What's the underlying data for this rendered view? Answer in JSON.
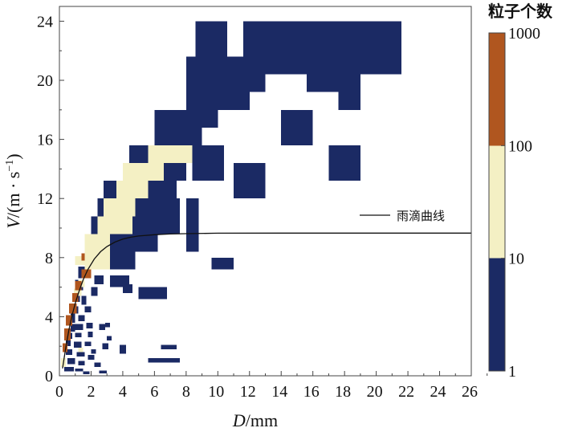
{
  "chart_data": {
    "type": "heatmap",
    "title": "",
    "xlabel": {
      "var": "D",
      "unit": "/mm"
    },
    "ylabel": {
      "var": "V",
      "unit": "/(m · s",
      "sup": "−1",
      "close": ")"
    },
    "xlim": [
      0,
      26
    ],
    "ylim": [
      0,
      25
    ],
    "x_ticks": [
      "0",
      "2",
      "4",
      "6",
      "8",
      "10",
      "12",
      "14",
      "16",
      "18",
      "20",
      "22",
      "24",
      "26"
    ],
    "y_ticks": [
      "0",
      "4",
      "8",
      "12",
      "16",
      "20",
      "24"
    ],
    "colorbar": {
      "title": "粒子个数",
      "scale": "log",
      "ticks": [
        "1",
        "10",
        "100",
        "1000"
      ],
      "bins": [
        {
          "range": [
            1,
            10
          ],
          "color": "#1b2a64"
        },
        {
          "range": [
            10,
            100
          ],
          "color": "#f4f0c4"
        },
        {
          "range": [
            100,
            1000
          ],
          "color": "#b0561f"
        }
      ]
    },
    "legend": {
      "label": "雨滴曲线",
      "position": "right"
    },
    "curve": {
      "name": "雨滴曲线",
      "points": [
        [
          0.2,
          0.5
        ],
        [
          0.4,
          1.9
        ],
        [
          0.6,
          3.1
        ],
        [
          0.8,
          4.1
        ],
        [
          1.0,
          4.9
        ],
        [
          1.2,
          5.6
        ],
        [
          1.5,
          6.5
        ],
        [
          1.8,
          7.2
        ],
        [
          2.2,
          7.9
        ],
        [
          2.6,
          8.4
        ],
        [
          3.0,
          8.75
        ],
        [
          3.5,
          9.05
        ],
        [
          4.0,
          9.25
        ],
        [
          4.5,
          9.38
        ],
        [
          5.0,
          9.46
        ],
        [
          6.0,
          9.55
        ],
        [
          7.0,
          9.6
        ],
        [
          8.0,
          9.62
        ],
        [
          10.0,
          9.65
        ],
        [
          14.0,
          9.66
        ],
        [
          20.0,
          9.66
        ],
        [
          26.0,
          9.66
        ]
      ]
    },
    "cells": [
      [
        8.6,
        22.8,
        2,
        1.2,
        1
      ],
      [
        8.6,
        21.6,
        2,
        1.2,
        1
      ],
      [
        11.6,
        22.8,
        10,
        1.2,
        1
      ],
      [
        11.6,
        21.6,
        10,
        1.2,
        1
      ],
      [
        8.0,
        20.4,
        13.6,
        1.2,
        1
      ],
      [
        8.0,
        19.2,
        5,
        1.2,
        1
      ],
      [
        15.6,
        19.2,
        2,
        1.2,
        1
      ],
      [
        17.6,
        19.2,
        1.4,
        1.2,
        1
      ],
      [
        8.0,
        18.0,
        4,
        1.2,
        1
      ],
      [
        17.6,
        18.0,
        1.4,
        1.2,
        1
      ],
      [
        6.0,
        16.8,
        4,
        1.2,
        1
      ],
      [
        6.0,
        15.6,
        3,
        1.2,
        1
      ],
      [
        14.0,
        16.8,
        2,
        1.2,
        1
      ],
      [
        14.0,
        15.6,
        2,
        1.2,
        1
      ],
      [
        4.4,
        14.4,
        1.6,
        1.2,
        1
      ],
      [
        6.0,
        14.4,
        2.4,
        1.2,
        1
      ],
      [
        8.4,
        14.4,
        2,
        1.2,
        1
      ],
      [
        8.4,
        13.2,
        2,
        1.2,
        1
      ],
      [
        17.0,
        14.4,
        2,
        1.2,
        1
      ],
      [
        17.0,
        13.2,
        2,
        1.2,
        1
      ],
      [
        4.0,
        13.2,
        0.6,
        1.2,
        1
      ],
      [
        6.6,
        13.2,
        1.4,
        1.2,
        1
      ],
      [
        11.0,
        13.2,
        2,
        1.2,
        1
      ],
      [
        11.0,
        12.0,
        2,
        1.2,
        1
      ],
      [
        2.8,
        12.0,
        1.6,
        1.2,
        1
      ],
      [
        5.6,
        12.0,
        1.8,
        1.2,
        1
      ],
      [
        2.4,
        10.8,
        1.2,
        1.2,
        1
      ],
      [
        4.8,
        10.8,
        2.8,
        1.2,
        1
      ],
      [
        8.0,
        10.8,
        0.8,
        1.2,
        1
      ],
      [
        2.0,
        9.6,
        1.4,
        1.2,
        1
      ],
      [
        4.6,
        9.6,
        3.0,
        1.2,
        1
      ],
      [
        8.0,
        9.6,
        0.8,
        1.2,
        1
      ],
      [
        8.0,
        8.4,
        0.8,
        1.2,
        1
      ],
      [
        3.2,
        8.4,
        3.0,
        1.2,
        1
      ],
      [
        3.2,
        7.2,
        1.6,
        1.2,
        1
      ],
      [
        9.6,
        7.2,
        1.4,
        0.8,
        1
      ],
      [
        1.6,
        7.8,
        0.8,
        0.7,
        1
      ],
      [
        1.2,
        6.6,
        0.6,
        0.8,
        1
      ],
      [
        3.2,
        6.0,
        1.2,
        0.8,
        1
      ],
      [
        2.2,
        6.2,
        0.6,
        0.6,
        1
      ],
      [
        1.0,
        5.8,
        0.5,
        0.7,
        1
      ],
      [
        2.0,
        5.4,
        0.4,
        0.6,
        1
      ],
      [
        5.0,
        5.2,
        1.8,
        0.8,
        1
      ],
      [
        4.0,
        5.6,
        0.6,
        0.6,
        1
      ],
      [
        0.9,
        5.0,
        0.4,
        0.5,
        1
      ],
      [
        1.4,
        4.8,
        0.3,
        0.6,
        1
      ],
      [
        0.9,
        4.2,
        0.3,
        0.5,
        1
      ],
      [
        1.6,
        4.3,
        0.4,
        0.4,
        1
      ],
      [
        0.7,
        3.6,
        0.3,
        0.6,
        1
      ],
      [
        1.2,
        3.7,
        0.4,
        0.4,
        1
      ],
      [
        0.7,
        3.0,
        0.3,
        0.5,
        1
      ],
      [
        1.0,
        3.1,
        0.5,
        0.4,
        1
      ],
      [
        1.7,
        3.2,
        0.4,
        0.4,
        1
      ],
      [
        2.5,
        3.1,
        0.4,
        0.4,
        1
      ],
      [
        2.9,
        3.3,
        0.3,
        0.3,
        1
      ],
      [
        0.5,
        2.5,
        0.3,
        0.4,
        1
      ],
      [
        1.0,
        2.6,
        0.4,
        0.3,
        1
      ],
      [
        1.8,
        2.6,
        0.3,
        0.4,
        1
      ],
      [
        0.4,
        2.0,
        0.3,
        0.4,
        1
      ],
      [
        0.9,
        1.9,
        0.5,
        0.4,
        1
      ],
      [
        1.6,
        2.0,
        0.4,
        0.3,
        1
      ],
      [
        2.0,
        1.5,
        0.3,
        0.3,
        1
      ],
      [
        2.7,
        1.8,
        0.4,
        0.4,
        1
      ],
      [
        3.0,
        2.4,
        0.3,
        0.3,
        1
      ],
      [
        0.4,
        1.4,
        0.4,
        0.4,
        1
      ],
      [
        1.1,
        1.3,
        0.5,
        0.3,
        1
      ],
      [
        1.8,
        1.1,
        0.4,
        0.3,
        1
      ],
      [
        0.5,
        0.8,
        0.5,
        0.4,
        1
      ],
      [
        1.2,
        0.7,
        0.4,
        0.3,
        1
      ],
      [
        2.2,
        0.6,
        0.4,
        0.3,
        1
      ],
      [
        0.3,
        0.3,
        0.6,
        0.3,
        1
      ],
      [
        1.0,
        0.3,
        0.5,
        0.2,
        1
      ],
      [
        2.5,
        0.15,
        0.5,
        0.2,
        1
      ],
      [
        1.5,
        0.1,
        0.4,
        0.2,
        1
      ],
      [
        3.8,
        1.5,
        0.4,
        0.6,
        1
      ],
      [
        6.4,
        1.8,
        1.0,
        0.3,
        1
      ],
      [
        7.0,
        1.8,
        0.4,
        0.3,
        1
      ],
      [
        5.6,
        0.9,
        2.0,
        0.3,
        1
      ],
      [
        4.0,
        13.2,
        0.6,
        1.2,
        2
      ],
      [
        4.6,
        13.2,
        2.0,
        1.2,
        2
      ],
      [
        5.6,
        14.4,
        0.4,
        1.2,
        2
      ],
      [
        6.0,
        14.4,
        2.4,
        1.2,
        2
      ],
      [
        3.6,
        12.0,
        2.0,
        1.2,
        2
      ],
      [
        2.8,
        10.8,
        2.0,
        1.2,
        2
      ],
      [
        2.4,
        9.6,
        2.2,
        1.2,
        2
      ],
      [
        1.6,
        8.4,
        1.6,
        1.2,
        2
      ],
      [
        1.6,
        7.2,
        1.6,
        1.2,
        2
      ],
      [
        1.0,
        7.5,
        0.6,
        0.6,
        2
      ],
      [
        1.2,
        6.0,
        0.4,
        0.5,
        2
      ],
      [
        0.9,
        5.4,
        0.5,
        0.5,
        2
      ],
      [
        0.6,
        4.2,
        0.3,
        0.6,
        2
      ],
      [
        0.5,
        3.4,
        0.3,
        0.5,
        2
      ],
      [
        0.3,
        2.6,
        0.3,
        0.6,
        2
      ],
      [
        0.2,
        1.6,
        0.3,
        0.6,
        2
      ],
      [
        0.1,
        0.6,
        0.3,
        0.6,
        2
      ],
      [
        1.2,
        1.6,
        0.3,
        0.3,
        2
      ],
      [
        1.4,
        7.8,
        0.2,
        0.5,
        3
      ],
      [
        1.4,
        6.6,
        0.6,
        0.6,
        3
      ],
      [
        1.0,
        5.8,
        0.4,
        0.6,
        3
      ],
      [
        0.8,
        5.0,
        0.4,
        0.6,
        3
      ],
      [
        0.6,
        4.2,
        0.5,
        0.7,
        3
      ],
      [
        0.4,
        3.4,
        0.4,
        0.7,
        3
      ],
      [
        0.3,
        2.4,
        0.4,
        0.8,
        3
      ],
      [
        0.2,
        1.6,
        0.3,
        0.6,
        3
      ]
    ]
  }
}
